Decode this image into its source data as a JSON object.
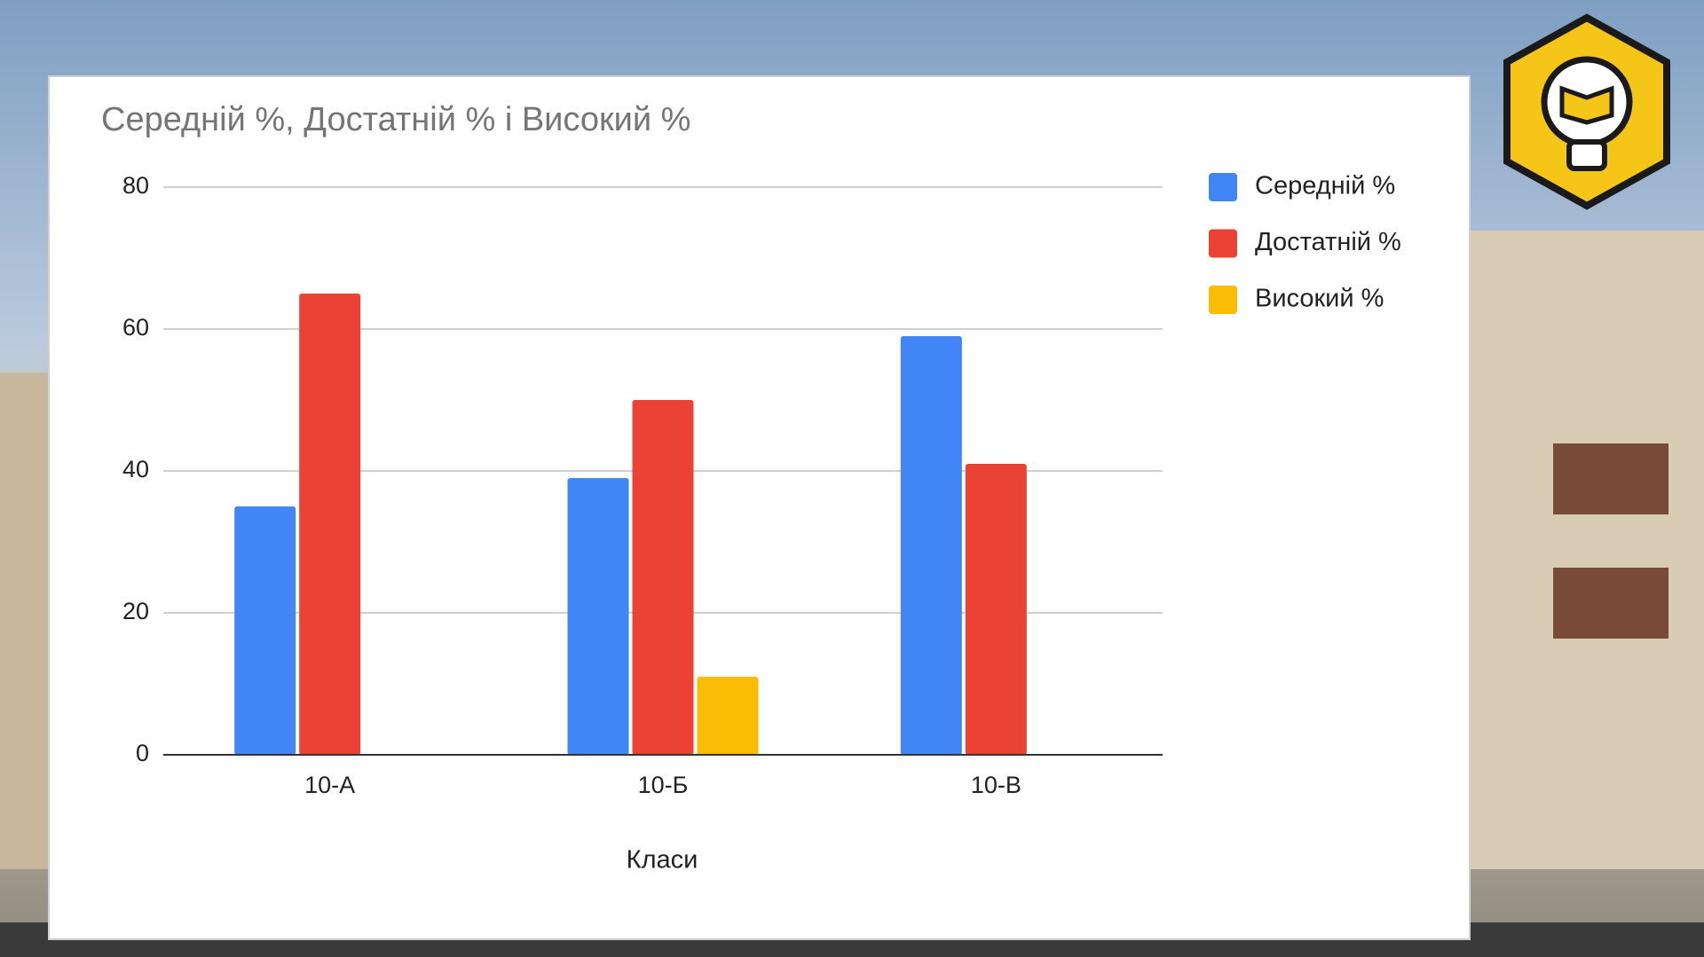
{
  "chart_data": {
    "type": "bar",
    "title": "Середній %, Достатній % і Високий %",
    "x_label": "Класи",
    "categories": [
      "10-А",
      "10-Б",
      "10-В"
    ],
    "series": [
      {
        "name": "Середній %",
        "color": "#4285f4",
        "values": [
          35,
          39,
          59
        ]
      },
      {
        "name": "Достатній %",
        "color": "#ea4335",
        "values": [
          65,
          50,
          41
        ]
      },
      {
        "name": "Високий %",
        "color": "#fbbc04",
        "values": [
          null,
          11,
          null
        ]
      }
    ],
    "ylim": [
      0,
      80
    ],
    "yticks": [
      0,
      20,
      40,
      60,
      80
    ],
    "grid": true,
    "legend": "right"
  }
}
